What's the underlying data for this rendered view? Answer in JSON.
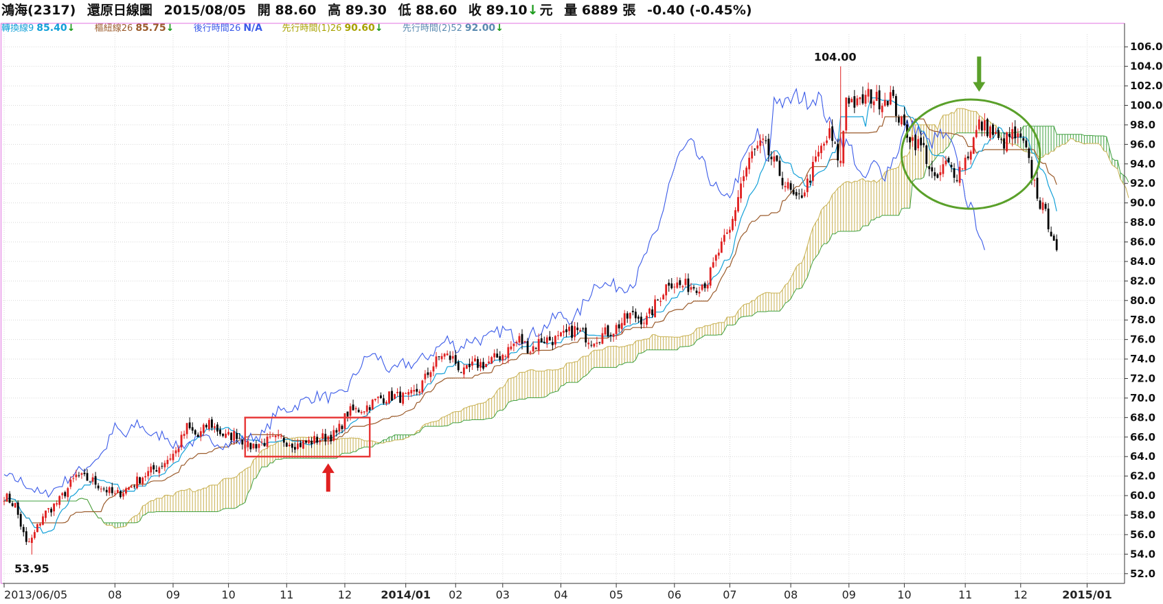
{
  "header": {
    "stock": "鴻海(2317)",
    "chart_name": "還原日線圖",
    "date": "2015/08/05",
    "open_label": "開",
    "open": "88.60",
    "high_label": "高",
    "high": "89.30",
    "low_label": "低",
    "low": "88.60",
    "close_label": "收",
    "close": "89.10",
    "arrow": "↓",
    "unit": "元",
    "volume_label": "量",
    "volume": "6889",
    "volume_unit": "張",
    "change": "-0.40 (-0.45%)"
  },
  "legend": [
    {
      "label": "轉換線9",
      "value": "85.40",
      "color": "#12a0d8",
      "arrow": "↓"
    },
    {
      "label": "樞紐線26",
      "value": "85.75",
      "color": "#9a5a2a",
      "arrow": "↓"
    },
    {
      "label": "後行時間26",
      "value": "N/A",
      "color": "#3a5ae8",
      "arrow": ""
    },
    {
      "label": "先行時間(1)26",
      "value": "90.60",
      "color": "#a8a200",
      "arrow": "↓"
    },
    {
      "label": "先行時間(2)52",
      "value": "92.00",
      "color": "#5a8ab0",
      "arrow": "↓"
    }
  ],
  "chart_data": {
    "type": "candlestick",
    "y_ticks": [
      "106.0",
      "104.0",
      "102.0",
      "100.0",
      "98.0",
      "96.0",
      "94.0",
      "92.0",
      "90.0",
      "88.0",
      "86.0",
      "84.0",
      "82.0",
      "80.0",
      "78.0",
      "76.0",
      "74.0",
      "72.0",
      "70.0",
      "68.0",
      "66.0",
      "64.0",
      "62.0",
      "60.0",
      "58.0",
      "56.0",
      "54.0",
      "52.0"
    ],
    "ylim": [
      51,
      107
    ],
    "x_ticks": [
      {
        "label": "2013/06/05",
        "t": 0,
        "bold": false
      },
      {
        "label": "08",
        "t": 40,
        "bold": false
      },
      {
        "label": "09",
        "t": 61,
        "bold": false
      },
      {
        "label": "10",
        "t": 81,
        "bold": false
      },
      {
        "label": "11",
        "t": 102,
        "bold": false
      },
      {
        "label": "12",
        "t": 123,
        "bold": false
      },
      {
        "label": "2014/01",
        "t": 145,
        "bold": true
      },
      {
        "label": "02",
        "t": 163,
        "bold": false
      },
      {
        "label": "03",
        "t": 180,
        "bold": false
      },
      {
        "label": "04",
        "t": 201,
        "bold": false
      },
      {
        "label": "05",
        "t": 221,
        "bold": false
      },
      {
        "label": "06",
        "t": 242,
        "bold": false
      },
      {
        "label": "07",
        "t": 262,
        "bold": false
      },
      {
        "label": "08",
        "t": 284,
        "bold": false
      },
      {
        "label": "09",
        "t": 305,
        "bold": false
      },
      {
        "label": "10",
        "t": 325,
        "bold": false
      },
      {
        "label": "11",
        "t": 347,
        "bold": false
      },
      {
        "label": "12",
        "t": 367,
        "bold": false
      },
      {
        "label": "2015/01",
        "t": 391,
        "bold": true
      }
    ],
    "x_total": 405,
    "close_anchors": [
      [
        0,
        60
      ],
      [
        4,
        59
      ],
      [
        8,
        55
      ],
      [
        10,
        55.5
      ],
      [
        14,
        58
      ],
      [
        20,
        59.5
      ],
      [
        26,
        62
      ],
      [
        32,
        61.5
      ],
      [
        40,
        60
      ],
      [
        46,
        61
      ],
      [
        50,
        62
      ],
      [
        56,
        63
      ],
      [
        62,
        64.5
      ],
      [
        66,
        67
      ],
      [
        70,
        66
      ],
      [
        74,
        67.5
      ],
      [
        80,
        66
      ],
      [
        84,
        66.3
      ],
      [
        88,
        65
      ],
      [
        94,
        65.5
      ],
      [
        100,
        65.8
      ],
      [
        106,
        65.2
      ],
      [
        110,
        65.5
      ],
      [
        116,
        66
      ],
      [
        120,
        66.3
      ],
      [
        124,
        68.5
      ],
      [
        130,
        69
      ],
      [
        136,
        70
      ],
      [
        140,
        70.2
      ],
      [
        146,
        70
      ],
      [
        150,
        71
      ],
      [
        154,
        73
      ],
      [
        158,
        74.5
      ],
      [
        162,
        74
      ],
      [
        166,
        72.5
      ],
      [
        170,
        73.5
      ],
      [
        174,
        73.5
      ],
      [
        180,
        74.5
      ],
      [
        186,
        76
      ],
      [
        190,
        75
      ],
      [
        194,
        76
      ],
      [
        200,
        76
      ],
      [
        206,
        77
      ],
      [
        212,
        76
      ],
      [
        220,
        77
      ],
      [
        226,
        78.5
      ],
      [
        232,
        78
      ],
      [
        236,
        80
      ],
      [
        240,
        82
      ],
      [
        244,
        81.5
      ],
      [
        250,
        81.5
      ],
      [
        254,
        82
      ],
      [
        258,
        85
      ],
      [
        262,
        87
      ],
      [
        266,
        92
      ],
      [
        270,
        95
      ],
      [
        274,
        96
      ],
      [
        278,
        94
      ],
      [
        282,
        92
      ],
      [
        286,
        90
      ],
      [
        290,
        92
      ],
      [
        294,
        95
      ],
      [
        298,
        97
      ],
      [
        302,
        94
      ],
      [
        304,
        101
      ],
      [
        308,
        100
      ],
      [
        312,
        101
      ],
      [
        316,
        100.5
      ],
      [
        320,
        101
      ],
      [
        324,
        98
      ],
      [
        328,
        96.5
      ],
      [
        332,
        95.5
      ],
      [
        336,
        92
      ],
      [
        340,
        94
      ],
      [
        344,
        93
      ],
      [
        348,
        95
      ],
      [
        352,
        98
      ],
      [
        356,
        97.5
      ],
      [
        360,
        96
      ],
      [
        364,
        97
      ],
      [
        368,
        96
      ],
      [
        372,
        92
      ],
      [
        374,
        90
      ],
      [
        377,
        88
      ],
      [
        379,
        86.5
      ],
      [
        380,
        84.5
      ]
    ],
    "annotations": {
      "low_label": "53.95",
      "low_t": 10,
      "low_value": 53.95,
      "high_label": "104.00",
      "high_t": 302,
      "high_value": 104.0,
      "rect": {
        "t1": 87,
        "t2": 132,
        "v1": 68.0,
        "v2": 64.0,
        "color": "#e83a3a"
      },
      "red_arrow": {
        "t": 117,
        "v_top": 63.3,
        "v_bottom": 60.4
      },
      "ellipse": {
        "cx_t": 349,
        "cy_v": 95.0,
        "rx_t": 25,
        "ry_v": 5.6,
        "color": "#5aa02a"
      },
      "green_arrow": {
        "t": 352,
        "v_top": 105.0,
        "v_bottom": 101.4
      }
    },
    "colors": {
      "up": "#e02020",
      "down": "#000000",
      "tenkan": "#12a0d8",
      "kijun": "#9a5a2a",
      "chikou": "#3a5ae8",
      "cloud_up": "#c8b050",
      "cloud_down": "#40a040",
      "grid": "#d8d8d8",
      "frame": "#e070e0"
    }
  }
}
